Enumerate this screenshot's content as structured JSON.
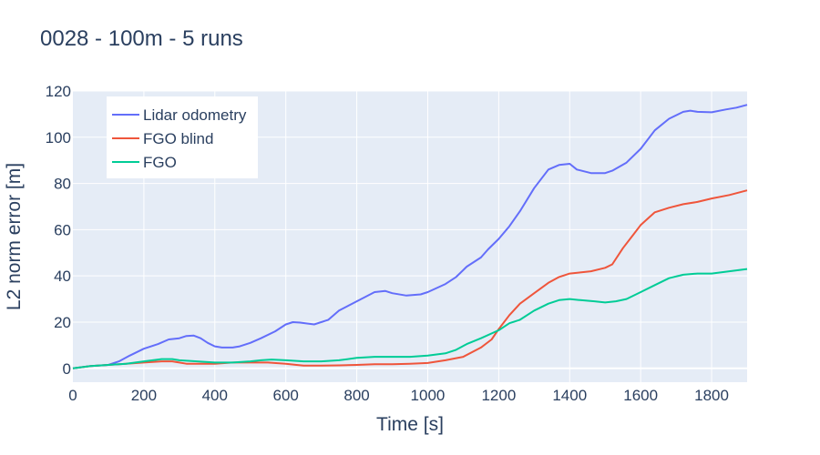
{
  "chart_data": {
    "type": "line",
    "title": "0028 - 100m - 5 runs",
    "xlabel": "Time [s]",
    "ylabel": "L2 norm error [m]",
    "xlim": [
      0,
      1900
    ],
    "ylim": [
      -6,
      120
    ],
    "x_ticks": [
      0,
      200,
      400,
      600,
      800,
      1000,
      1200,
      1400,
      1600,
      1800
    ],
    "y_ticks": [
      0,
      20,
      40,
      60,
      80,
      100,
      120
    ],
    "grid": true,
    "legend_position": "top-left",
    "series": [
      {
        "name": "Lidar odometry",
        "color": "#636efa",
        "x": [
          0,
          50,
          100,
          130,
          160,
          200,
          240,
          270,
          300,
          320,
          340,
          360,
          380,
          400,
          420,
          450,
          470,
          500,
          530,
          570,
          600,
          620,
          640,
          680,
          720,
          750,
          800,
          850,
          880,
          900,
          940,
          980,
          1000,
          1050,
          1080,
          1110,
          1150,
          1170,
          1200,
          1230,
          1260,
          1300,
          1340,
          1370,
          1400,
          1420,
          1460,
          1500,
          1520,
          1560,
          1600,
          1640,
          1680,
          1720,
          1740,
          1760,
          1800,
          1840,
          1870,
          1900
        ],
        "y": [
          0,
          1,
          1.5,
          3,
          5.5,
          8.5,
          10.5,
          12.5,
          13,
          14,
          14.2,
          13,
          11,
          9.5,
          9,
          9,
          9.5,
          11,
          13,
          16,
          19,
          20,
          19.8,
          19,
          21,
          25,
          29,
          33,
          33.5,
          32.5,
          31.5,
          32,
          33,
          36.5,
          39.5,
          44,
          48,
          51.5,
          56,
          61.5,
          68,
          78,
          86,
          88,
          88.5,
          86,
          84.5,
          84.5,
          85.5,
          89,
          95,
          103,
          108,
          111,
          111.5,
          111,
          110.8,
          112,
          112.8,
          114
        ]
      },
      {
        "name": "FGO blind",
        "color": "#ef553b",
        "x": [
          0,
          50,
          100,
          150,
          200,
          250,
          280,
          300,
          320,
          350,
          400,
          450,
          500,
          550,
          600,
          630,
          650,
          700,
          750,
          800,
          850,
          900,
          950,
          1000,
          1050,
          1100,
          1150,
          1180,
          1200,
          1230,
          1260,
          1300,
          1340,
          1370,
          1400,
          1430,
          1460,
          1500,
          1520,
          1550,
          1580,
          1600,
          1640,
          1680,
          1720,
          1760,
          1800,
          1850,
          1900
        ],
        "y": [
          0,
          1,
          1.5,
          2,
          2.5,
          3,
          3,
          2.5,
          2,
          2,
          2,
          2.5,
          2.5,
          2.5,
          2,
          1.5,
          1.2,
          1.2,
          1.3,
          1.5,
          1.8,
          1.8,
          2,
          2.3,
          3.5,
          5,
          9,
          12.5,
          17,
          23,
          28,
          32.5,
          37,
          39.5,
          41,
          41.5,
          42,
          43.5,
          45,
          52,
          58,
          62,
          67.5,
          69.5,
          71,
          72,
          73.5,
          75,
          77
        ]
      },
      {
        "name": "FGO",
        "color": "#00cc96",
        "x": [
          0,
          50,
          100,
          150,
          200,
          250,
          280,
          300,
          350,
          400,
          450,
          500,
          530,
          560,
          600,
          650,
          700,
          750,
          800,
          850,
          900,
          950,
          1000,
          1050,
          1080,
          1110,
          1150,
          1200,
          1230,
          1260,
          1300,
          1340,
          1370,
          1400,
          1430,
          1470,
          1500,
          1530,
          1560,
          1600,
          1640,
          1680,
          1720,
          1760,
          1800,
          1850,
          1900
        ],
        "y": [
          0,
          1,
          1.5,
          2,
          3,
          4,
          4,
          3.5,
          3,
          2.5,
          2.5,
          3,
          3.5,
          3.8,
          3.5,
          3,
          3,
          3.5,
          4.5,
          5,
          5,
          5,
          5.5,
          6.5,
          8,
          10.5,
          13,
          16.5,
          19.5,
          21,
          25,
          28,
          29.5,
          30,
          29.5,
          29,
          28.5,
          29,
          30,
          33,
          36,
          39,
          40.5,
          41,
          41,
          42,
          43
        ]
      }
    ]
  }
}
